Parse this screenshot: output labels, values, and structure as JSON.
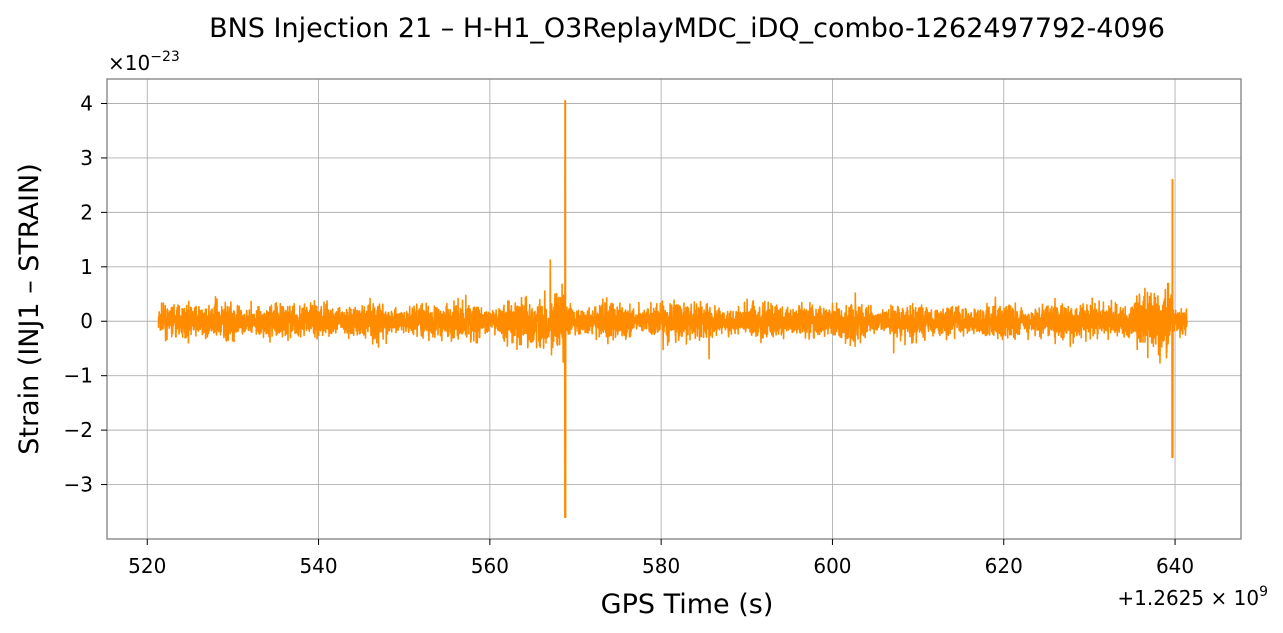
{
  "chart_data": {
    "type": "line",
    "title": "BNS Injection 21 – H-H1_O3ReplayMDC_iDQ_combo-1262497792-4096",
    "xlabel": "GPS Time (s)",
    "ylabel": "Strain (INJ1 – STRAIN)",
    "x_offset_label": "+1.2625 × 10^9",
    "y_scale_label": "×10^-23",
    "xlim": [
      515.3,
      647.7
    ],
    "ylim": [
      -4.0,
      4.45
    ],
    "xticks": [
      520,
      540,
      560,
      580,
      600,
      620,
      640
    ],
    "xtick_labels": [
      "520",
      "540",
      "560",
      "580",
      "600",
      "620",
      "640"
    ],
    "yticks": [
      -3,
      -2,
      -1,
      0,
      1,
      2,
      3,
      4
    ],
    "ytick_labels": [
      "−3",
      "−2",
      "−1",
      "0",
      "1",
      "2",
      "3",
      "4"
    ],
    "grid": true,
    "series": [
      {
        "color": "#ff8c00",
        "x_range": [
          521.3,
          641.4
        ],
        "features": [
          {
            "type": "noise_floor",
            "x_start": 521.3,
            "x_end": 641.4,
            "typical_amplitude": 0.6
          },
          {
            "type": "peak",
            "x": 568.8,
            "max": 4.05,
            "min": -3.6
          },
          {
            "type": "peak",
            "x": 639.7,
            "max": 2.6,
            "min": -2.5
          }
        ]
      }
    ]
  }
}
